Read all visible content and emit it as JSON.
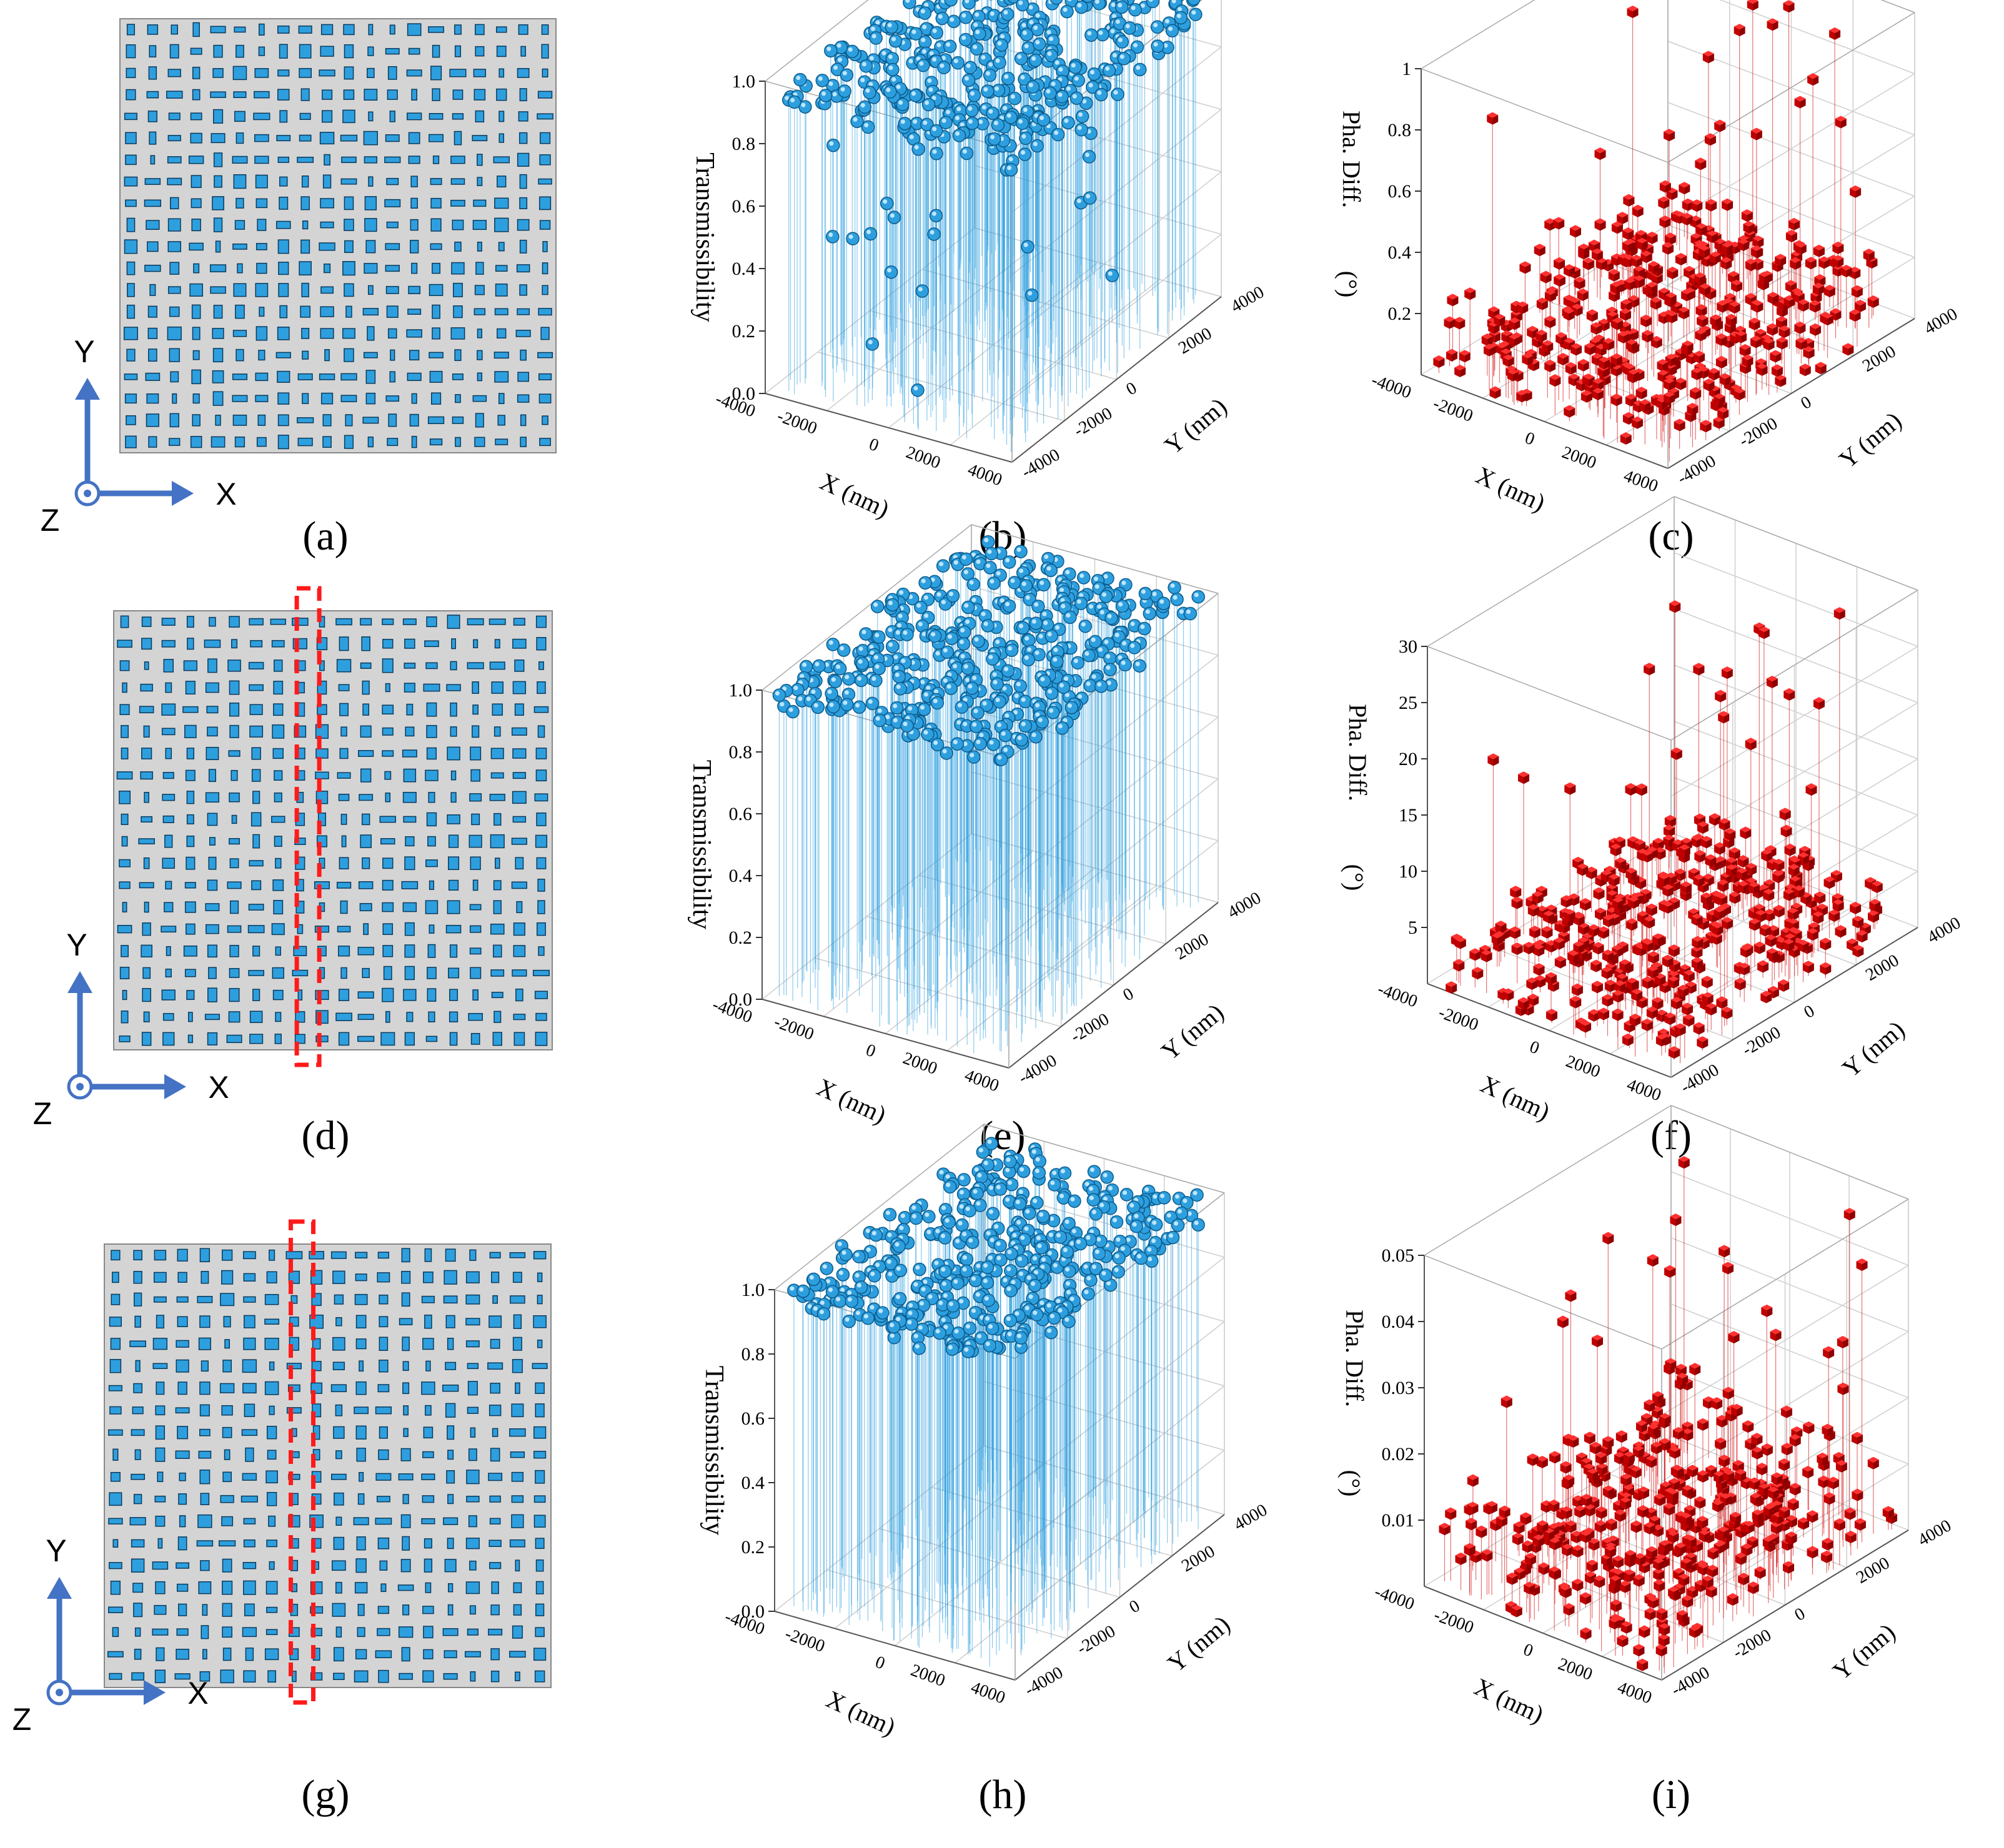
{
  "panels": {
    "a": {
      "label": "(a)",
      "highlight": false,
      "seed": 11
    },
    "d": {
      "label": "(d)",
      "highlight": true,
      "seed": 23
    },
    "g": {
      "label": "(g)",
      "highlight": true,
      "seed": 37
    }
  },
  "axes_indicator": {
    "y": "Y",
    "x": "X",
    "z": "Z"
  },
  "colors": {
    "cell": "#2e9fde",
    "cell_edge": "#0b3a5c",
    "substrate": "#d4d4d4",
    "trans": "#2e9fde",
    "phase": "#d40000",
    "highlight": "#ff1a1a",
    "arrow": "#4472c4"
  },
  "chart_data": [
    {
      "id": "b",
      "type": "scatter3d",
      "panel_label": "(b)",
      "marker": "sphere",
      "zlabel": "Transmissibility",
      "xlabel": "X (nm)",
      "ylabel": "Y (nm)",
      "zlim": [
        0,
        1.0
      ],
      "zticks": [
        "0.0",
        "0.2",
        "0.4",
        "0.6",
        "0.8",
        "1.0"
      ],
      "xticks": [
        "-4000",
        "-2000",
        "0",
        "2000",
        "4000"
      ],
      "yticks": [
        "-4000",
        "-2000",
        "0",
        "2000",
        "4000"
      ],
      "n_points": 400,
      "z_bulk": [
        0.88,
        0.98
      ],
      "z_outliers": [
        0.87,
        0.86,
        0.85,
        0.83,
        0.82,
        0.8,
        0.79,
        0.78,
        0.76,
        0.74,
        0.72,
        0.68,
        0.65,
        0.62,
        0.6,
        0.59,
        0.58,
        0.45,
        0.44,
        0.43,
        0.41,
        0.4,
        0.36,
        0.33,
        0.23,
        0.2,
        0.18,
        0.15,
        0.12,
        0.1,
        0.08
      ]
    },
    {
      "id": "c",
      "type": "scatter3d",
      "panel_label": "(c)",
      "marker": "cube",
      "zlabel": "Pha. Diff.",
      "zunit": "(°)",
      "xlabel": "X (nm)",
      "ylabel": "Y (nm)",
      "zlim": [
        0,
        1
      ],
      "zticks": [
        "0.2",
        "0.4",
        "0.6",
        "0.8",
        "1"
      ],
      "xticks": [
        "-4000",
        "-2000",
        "0",
        "2000",
        "4000"
      ],
      "yticks": [
        "-4000",
        "-2000",
        "0",
        "2000",
        "4000"
      ],
      "n_points": 400,
      "z_bulk": [
        0.0,
        0.22
      ],
      "z_outliers": [
        0.97,
        0.96,
        0.95,
        0.93,
        0.92,
        0.9,
        0.89,
        0.88,
        0.86,
        0.85,
        0.7,
        0.65,
        0.62,
        0.58,
        0.55,
        0.5,
        0.48,
        0.45,
        0.42,
        0.4,
        0.39,
        0.38,
        0.37,
        0.36,
        0.35,
        0.34,
        0.33,
        0.32,
        0.31,
        0.3,
        0.29,
        0.28,
        0.27,
        0.26,
        0.25,
        0.24
      ]
    },
    {
      "id": "e",
      "type": "scatter3d",
      "panel_label": "(e)",
      "marker": "sphere",
      "zlabel": "Transmissibility",
      "xlabel": "X (nm)",
      "ylabel": "Y (nm)",
      "zlim": [
        0,
        1.0
      ],
      "zticks": [
        "0.0",
        "0.2",
        "0.4",
        "0.6",
        "0.8",
        "1.0"
      ],
      "xticks": [
        "-4000",
        "-2000",
        "0",
        "2000",
        "4000"
      ],
      "yticks": [
        "-4000",
        "-2000",
        "0",
        "2000",
        "4000"
      ],
      "n_points": 400,
      "z_bulk": [
        0.93,
        1.0
      ],
      "z_outliers": []
    },
    {
      "id": "f",
      "type": "scatter3d",
      "panel_label": "(f)",
      "marker": "cube",
      "zlabel": "Pha. Diff.",
      "zunit": "(°)",
      "xlabel": "X (nm)",
      "ylabel": "Y (nm)",
      "zlim": [
        0,
        30
      ],
      "zticks": [
        "5",
        "10",
        "15",
        "20",
        "25",
        "30"
      ],
      "xticks": [
        "-4000",
        "-2000",
        "0",
        "2000",
        "4000"
      ],
      "yticks": [
        "-4000",
        "-2000",
        "0",
        "2000",
        "4000"
      ],
      "n_points": 400,
      "z_bulk": [
        0.0,
        4.0
      ],
      "z_outliers": [
        29,
        28,
        27.5,
        27,
        26,
        25,
        24,
        23.5,
        23,
        22,
        21,
        20.5,
        20,
        19,
        18.5,
        18,
        17,
        16.5,
        16,
        15,
        14.5,
        14,
        13,
        12.5,
        12,
        11,
        10.5,
        10,
        9,
        8.5,
        8,
        7,
        6.5,
        6,
        5.5,
        5
      ]
    },
    {
      "id": "h",
      "type": "scatter3d",
      "panel_label": "(h)",
      "marker": "sphere",
      "zlabel": "Transmissibility",
      "xlabel": "X (nm)",
      "ylabel": "Y (nm)",
      "zlim": [
        0,
        1.0
      ],
      "zticks": [
        "0.0",
        "0.2",
        "0.4",
        "0.6",
        "0.8",
        "1.0"
      ],
      "xticks": [
        "-4000",
        "-2000",
        "0",
        "2000",
        "4000"
      ],
      "yticks": [
        "-4000",
        "-2000",
        "0",
        "2000",
        "4000"
      ],
      "n_points": 400,
      "z_bulk": [
        0.93,
        1.0
      ],
      "z_outliers": []
    },
    {
      "id": "i",
      "type": "scatter3d",
      "panel_label": "(i)",
      "marker": "cube",
      "zlabel": "Pha. Diff.",
      "zunit": "(°)",
      "xlabel": "X (nm)",
      "ylabel": "Y (nm)",
      "zlim": [
        0,
        0.05
      ],
      "zticks": [
        "0.01",
        "0.02",
        "0.03",
        "0.04",
        "0.05"
      ],
      "xticks": [
        "-4000",
        "-2000",
        "0",
        "2000",
        "4000"
      ],
      "yticks": [
        "-4000",
        "-2000",
        "0",
        "2000",
        "4000"
      ],
      "n_points": 400,
      "z_bulk": [
        0.0,
        0.014
      ],
      "z_outliers": [
        0.046,
        0.045,
        0.044,
        0.043,
        0.042,
        0.041,
        0.04,
        0.039,
        0.038,
        0.037,
        0.036,
        0.035,
        0.034,
        0.033,
        0.032,
        0.031,
        0.03,
        0.029,
        0.028,
        0.027,
        0.026,
        0.025,
        0.024,
        0.023,
        0.022,
        0.021,
        0.02,
        0.019,
        0.018,
        0.017,
        0.016,
        0.015
      ]
    }
  ]
}
